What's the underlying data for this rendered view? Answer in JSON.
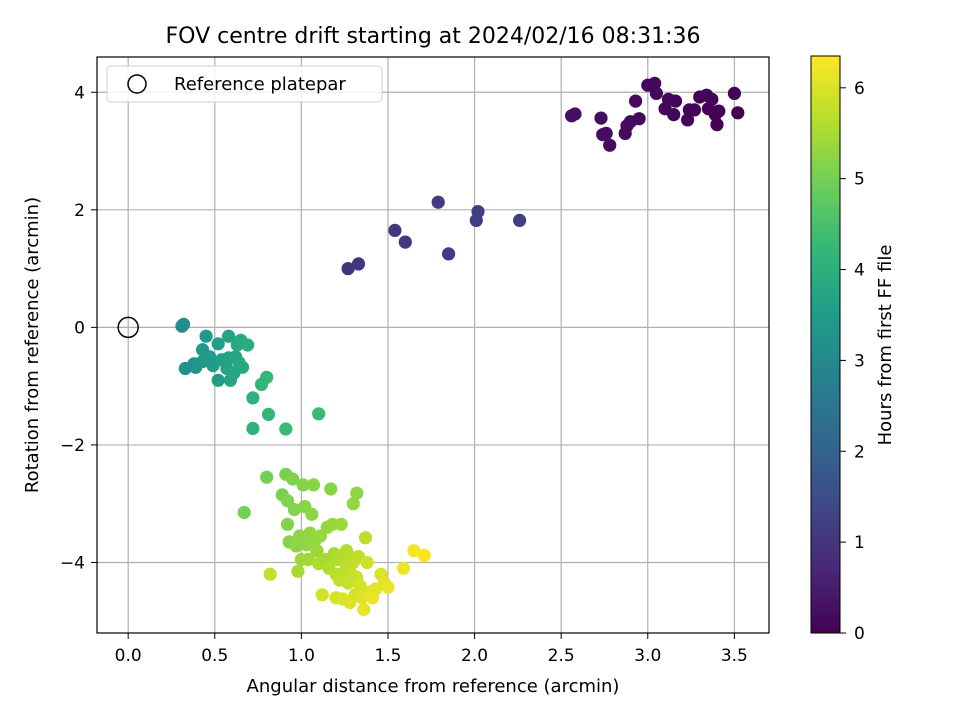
{
  "chart_data": {
    "type": "scatter",
    "title": "FOV centre drift starting at 2024/02/16 08:31:36",
    "xlabel": "Angular distance from reference (arcmin)",
    "ylabel": "Rotation from reference (arcmin)",
    "xlim": [
      -0.18,
      3.7
    ],
    "ylim": [
      -5.2,
      4.6
    ],
    "xticks": [
      0.0,
      0.5,
      1.0,
      1.5,
      2.0,
      2.5,
      3.0,
      3.5
    ],
    "xtick_labels": [
      "0.0",
      "0.5",
      "1.0",
      "1.5",
      "2.0",
      "2.5",
      "3.0",
      "3.5"
    ],
    "yticks": [
      -4,
      -2,
      0,
      2,
      4
    ],
    "ytick_labels": [
      "−4",
      "−2",
      "0",
      "2",
      "4"
    ],
    "grid": true,
    "legend": {
      "position": "upper-left",
      "entries": [
        "Reference platepar"
      ]
    },
    "reference_point": {
      "x": 0.0,
      "y": 0.0
    },
    "colorbar": {
      "label": "Hours from first FF file",
      "colormap": "viridis",
      "range": [
        0,
        6.35
      ],
      "ticks": [
        0,
        1,
        2,
        3,
        4,
        5,
        6
      ],
      "tick_labels": [
        "0",
        "1",
        "2",
        "3",
        "4",
        "5",
        "6"
      ]
    },
    "colormap_stops": [
      "#440154",
      "#482878",
      "#3e4989",
      "#31688e",
      "#26828e",
      "#1f9e89",
      "#35b779",
      "#6ece58",
      "#b5de2b",
      "#fde725"
    ],
    "points": [
      {
        "x": 2.56,
        "y": 3.6,
        "h": 0.25
      },
      {
        "x": 2.58,
        "y": 3.63,
        "h": 0.24
      },
      {
        "x": 2.73,
        "y": 3.56,
        "h": 0.23
      },
      {
        "x": 2.74,
        "y": 3.28,
        "h": 0.22
      },
      {
        "x": 2.76,
        "y": 3.3,
        "h": 0.21
      },
      {
        "x": 2.78,
        "y": 3.1,
        "h": 0.2
      },
      {
        "x": 2.87,
        "y": 3.3,
        "h": 0.19
      },
      {
        "x": 2.88,
        "y": 3.43,
        "h": 0.18
      },
      {
        "x": 2.9,
        "y": 3.5,
        "h": 0.17
      },
      {
        "x": 2.93,
        "y": 3.85,
        "h": 0.16
      },
      {
        "x": 2.95,
        "y": 3.55,
        "h": 0.15
      },
      {
        "x": 3.0,
        "y": 4.12,
        "h": 0.14
      },
      {
        "x": 3.04,
        "y": 4.15,
        "h": 0.13
      },
      {
        "x": 3.05,
        "y": 3.98,
        "h": 0.12
      },
      {
        "x": 3.1,
        "y": 3.72,
        "h": 0.11
      },
      {
        "x": 3.12,
        "y": 3.88,
        "h": 0.1
      },
      {
        "x": 3.16,
        "y": 3.85,
        "h": 0.09
      },
      {
        "x": 3.15,
        "y": 3.62,
        "h": 0.08
      },
      {
        "x": 3.24,
        "y": 3.7,
        "h": 0.07
      },
      {
        "x": 3.23,
        "y": 3.53,
        "h": 0.06
      },
      {
        "x": 3.27,
        "y": 3.7,
        "h": 0.05
      },
      {
        "x": 3.3,
        "y": 3.92,
        "h": 0.05
      },
      {
        "x": 3.34,
        "y": 3.95,
        "h": 0.04
      },
      {
        "x": 3.35,
        "y": 3.72,
        "h": 0.04
      },
      {
        "x": 3.37,
        "y": 3.88,
        "h": 0.03
      },
      {
        "x": 3.39,
        "y": 3.62,
        "h": 0.03
      },
      {
        "x": 3.4,
        "y": 3.45,
        "h": 0.02
      },
      {
        "x": 3.41,
        "y": 3.68,
        "h": 0.02
      },
      {
        "x": 3.5,
        "y": 3.98,
        "h": 0.01
      },
      {
        "x": 3.52,
        "y": 3.65,
        "h": 0.01
      },
      {
        "x": 1.27,
        "y": 1.0,
        "h": 0.95
      },
      {
        "x": 1.33,
        "y": 1.08,
        "h": 1.0
      },
      {
        "x": 1.54,
        "y": 1.65,
        "h": 1.05
      },
      {
        "x": 1.6,
        "y": 1.45,
        "h": 1.05
      },
      {
        "x": 1.79,
        "y": 2.13,
        "h": 1.1
      },
      {
        "x": 1.85,
        "y": 1.25,
        "h": 1.1
      },
      {
        "x": 2.01,
        "y": 1.82,
        "h": 1.15
      },
      {
        "x": 2.02,
        "y": 1.97,
        "h": 1.15
      },
      {
        "x": 2.26,
        "y": 1.82,
        "h": 1.2
      },
      {
        "x": 0.31,
        "y": 0.02,
        "h": 3.1
      },
      {
        "x": 0.32,
        "y": 0.05,
        "h": 3.1
      },
      {
        "x": 0.33,
        "y": -0.7,
        "h": 3.2
      },
      {
        "x": 0.38,
        "y": -0.62,
        "h": 3.25
      },
      {
        "x": 0.39,
        "y": -0.68,
        "h": 3.3
      },
      {
        "x": 0.43,
        "y": -0.58,
        "h": 3.35
      },
      {
        "x": 0.43,
        "y": -0.38,
        "h": 3.4
      },
      {
        "x": 0.45,
        "y": -0.15,
        "h": 3.4
      },
      {
        "x": 0.47,
        "y": -0.5,
        "h": 3.45
      },
      {
        "x": 0.49,
        "y": -0.65,
        "h": 3.5
      },
      {
        "x": 0.52,
        "y": -0.9,
        "h": 3.55
      },
      {
        "x": 0.52,
        "y": -0.28,
        "h": 3.55
      },
      {
        "x": 0.54,
        "y": -0.55,
        "h": 3.6
      },
      {
        "x": 0.57,
        "y": -0.7,
        "h": 3.65
      },
      {
        "x": 0.58,
        "y": -0.52,
        "h": 3.65
      },
      {
        "x": 0.58,
        "y": -0.15,
        "h": 3.7
      },
      {
        "x": 0.59,
        "y": -0.9,
        "h": 3.7
      },
      {
        "x": 0.61,
        "y": -0.78,
        "h": 3.75
      },
      {
        "x": 0.62,
        "y": -0.5,
        "h": 3.75
      },
      {
        "x": 0.63,
        "y": -0.3,
        "h": 3.8
      },
      {
        "x": 0.64,
        "y": -0.6,
        "h": 3.8
      },
      {
        "x": 0.65,
        "y": -0.22,
        "h": 3.85
      },
      {
        "x": 0.66,
        "y": -0.68,
        "h": 3.85
      },
      {
        "x": 0.69,
        "y": -0.3,
        "h": 3.9
      },
      {
        "x": 0.72,
        "y": -1.2,
        "h": 4.05
      },
      {
        "x": 0.72,
        "y": -1.72,
        "h": 4.1
      },
      {
        "x": 0.77,
        "y": -0.97,
        "h": 4.15
      },
      {
        "x": 0.8,
        "y": -0.85,
        "h": 4.2
      },
      {
        "x": 0.81,
        "y": -1.48,
        "h": 4.2
      },
      {
        "x": 0.91,
        "y": -1.73,
        "h": 4.3
      },
      {
        "x": 1.1,
        "y": -1.47,
        "h": 4.3
      },
      {
        "x": 0.67,
        "y": -3.15,
        "h": 5.0
      },
      {
        "x": 0.8,
        "y": -2.55,
        "h": 5.0
      },
      {
        "x": 0.82,
        "y": -4.2,
        "h": 5.8
      },
      {
        "x": 0.89,
        "y": -2.85,
        "h": 5.05
      },
      {
        "x": 0.91,
        "y": -2.5,
        "h": 5.05
      },
      {
        "x": 0.92,
        "y": -2.95,
        "h": 5.1
      },
      {
        "x": 0.92,
        "y": -3.35,
        "h": 5.15
      },
      {
        "x": 0.93,
        "y": -3.65,
        "h": 5.2
      },
      {
        "x": 0.95,
        "y": -2.58,
        "h": 5.1
      },
      {
        "x": 0.96,
        "y": -3.1,
        "h": 5.15
      },
      {
        "x": 0.97,
        "y": -3.72,
        "h": 5.25
      },
      {
        "x": 0.98,
        "y": -4.15,
        "h": 5.5
      },
      {
        "x": 0.99,
        "y": -3.55,
        "h": 5.25
      },
      {
        "x": 1.0,
        "y": -3.95,
        "h": 5.4
      },
      {
        "x": 1.01,
        "y": -2.68,
        "h": 5.15
      },
      {
        "x": 1.02,
        "y": -3.05,
        "h": 5.2
      },
      {
        "x": 1.03,
        "y": -3.7,
        "h": 5.3
      },
      {
        "x": 1.04,
        "y": -3.95,
        "h": 5.45
      },
      {
        "x": 1.05,
        "y": -3.5,
        "h": 5.3
      },
      {
        "x": 1.06,
        "y": -3.18,
        "h": 5.25
      },
      {
        "x": 1.07,
        "y": -2.68,
        "h": 5.2
      },
      {
        "x": 1.08,
        "y": -3.62,
        "h": 5.35
      },
      {
        "x": 1.09,
        "y": -3.8,
        "h": 5.4
      },
      {
        "x": 1.1,
        "y": -4.02,
        "h": 5.55
      },
      {
        "x": 1.11,
        "y": -3.55,
        "h": 5.35
      },
      {
        "x": 1.12,
        "y": -4.55,
        "h": 5.9
      },
      {
        "x": 1.14,
        "y": -3.95,
        "h": 5.5
      },
      {
        "x": 1.15,
        "y": -3.4,
        "h": 5.3
      },
      {
        "x": 1.16,
        "y": -4.1,
        "h": 5.6
      },
      {
        "x": 1.17,
        "y": -2.75,
        "h": 5.2
      },
      {
        "x": 1.18,
        "y": -3.35,
        "h": 5.35
      },
      {
        "x": 1.19,
        "y": -3.85,
        "h": 5.5
      },
      {
        "x": 1.2,
        "y": -4.2,
        "h": 5.7
      },
      {
        "x": 1.2,
        "y": -4.6,
        "h": 5.95
      },
      {
        "x": 1.21,
        "y": -3.95,
        "h": 5.6
      },
      {
        "x": 1.22,
        "y": -4.3,
        "h": 5.75
      },
      {
        "x": 1.23,
        "y": -3.35,
        "h": 5.4
      },
      {
        "x": 1.24,
        "y": -3.88,
        "h": 5.6
      },
      {
        "x": 1.24,
        "y": -4.62,
        "h": 6.0
      },
      {
        "x": 1.25,
        "y": -4.15,
        "h": 5.7
      },
      {
        "x": 1.26,
        "y": -3.8,
        "h": 5.6
      },
      {
        "x": 1.26,
        "y": -4.08,
        "h": 5.7
      },
      {
        "x": 1.27,
        "y": -4.35,
        "h": 5.8
      },
      {
        "x": 1.28,
        "y": -4.68,
        "h": 6.05
      },
      {
        "x": 1.28,
        "y": -3.9,
        "h": 5.65
      },
      {
        "x": 1.29,
        "y": -4.2,
        "h": 5.8
      },
      {
        "x": 1.3,
        "y": -4.0,
        "h": 5.75
      },
      {
        "x": 1.3,
        "y": -3.0,
        "h": 5.3
      },
      {
        "x": 1.31,
        "y": -4.55,
        "h": 5.95
      },
      {
        "x": 1.32,
        "y": -2.82,
        "h": 5.25
      },
      {
        "x": 1.32,
        "y": -4.25,
        "h": 5.85
      },
      {
        "x": 1.33,
        "y": -3.9,
        "h": 5.75
      },
      {
        "x": 1.34,
        "y": -4.4,
        "h": 5.95
      },
      {
        "x": 1.35,
        "y": -4.6,
        "h": 6.05
      },
      {
        "x": 1.36,
        "y": -4.8,
        "h": 6.15
      },
      {
        "x": 1.37,
        "y": -3.58,
        "h": 5.7
      },
      {
        "x": 1.38,
        "y": -4.0,
        "h": 5.9
      },
      {
        "x": 1.4,
        "y": -4.5,
        "h": 6.1
      },
      {
        "x": 1.41,
        "y": -4.6,
        "h": 6.15
      },
      {
        "x": 1.43,
        "y": -4.45,
        "h": 6.1
      },
      {
        "x": 1.46,
        "y": -4.2,
        "h": 6.0
      },
      {
        "x": 1.48,
        "y": -4.35,
        "h": 6.1
      },
      {
        "x": 1.5,
        "y": -4.42,
        "h": 6.15
      },
      {
        "x": 1.59,
        "y": -4.1,
        "h": 6.2
      },
      {
        "x": 1.65,
        "y": -3.8,
        "h": 6.25
      },
      {
        "x": 1.71,
        "y": -3.88,
        "h": 6.3
      }
    ]
  }
}
